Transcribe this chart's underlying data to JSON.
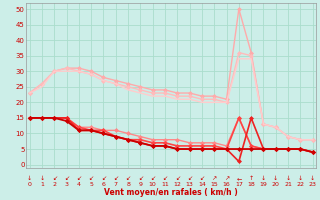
{
  "xlabel": "Vent moyen/en rafales ( km/h )",
  "bg_color": "#cceee8",
  "grid_color": "#aaddcc",
  "x_ticks": [
    0,
    1,
    2,
    3,
    4,
    5,
    6,
    7,
    8,
    9,
    10,
    11,
    12,
    13,
    14,
    15,
    16,
    17,
    18,
    19,
    20,
    21,
    22,
    23
  ],
  "y_ticks": [
    0,
    5,
    10,
    15,
    20,
    25,
    30,
    35,
    40,
    45,
    50
  ],
  "ylim": [
    -1,
    52
  ],
  "xlim": [
    -0.3,
    23.3
  ],
  "lines": [
    {
      "color": "#ffaaaa",
      "lw": 1.0,
      "marker": "D",
      "ms": 2.0,
      "mfc": "#ffaaaa",
      "x": [
        0,
        1,
        2,
        3,
        4,
        5,
        6,
        7,
        8,
        9,
        10,
        11,
        12,
        13,
        14,
        15,
        16,
        17,
        18,
        19,
        20,
        21,
        22,
        23
      ],
      "y": [
        23,
        26,
        30,
        31,
        31,
        30,
        28,
        27,
        26,
        25,
        24,
        24,
        23,
        23,
        22,
        22,
        21,
        50,
        36,
        13,
        12,
        9,
        8,
        8
      ]
    },
    {
      "color": "#ffbbbb",
      "lw": 1.0,
      "marker": "D",
      "ms": 2.0,
      "mfc": "#ffbbbb",
      "x": [
        0,
        1,
        2,
        3,
        4,
        5,
        6,
        7,
        8,
        9,
        10,
        11,
        12,
        13,
        14,
        15,
        16,
        17,
        18,
        19,
        20,
        21,
        22,
        23
      ],
      "y": [
        23,
        26,
        30,
        31,
        30,
        29,
        27,
        26,
        25,
        24,
        23,
        23,
        22,
        22,
        21,
        21,
        20,
        36,
        35,
        13,
        12,
        9,
        8,
        8
      ]
    },
    {
      "color": "#ffcccc",
      "lw": 1.0,
      "marker": null,
      "ms": 0,
      "mfc": "#ffcccc",
      "x": [
        0,
        1,
        2,
        3,
        4,
        5,
        6,
        7,
        8,
        9,
        10,
        11,
        12,
        13,
        14,
        15,
        16,
        17,
        18,
        19,
        20,
        21,
        22,
        23
      ],
      "y": [
        23,
        25,
        30,
        30,
        30,
        29,
        27,
        26,
        24,
        23,
        22,
        22,
        21,
        21,
        20,
        20,
        20,
        34,
        34,
        13,
        12,
        9,
        8,
        8
      ]
    },
    {
      "color": "#ff8888",
      "lw": 1.0,
      "marker": "D",
      "ms": 2.0,
      "mfc": "#ff8888",
      "x": [
        0,
        1,
        2,
        3,
        4,
        5,
        6,
        7,
        8,
        9,
        10,
        11,
        12,
        13,
        14,
        15,
        16,
        17,
        18,
        19,
        20,
        21,
        22,
        23
      ],
      "y": [
        15,
        15,
        15,
        15,
        12,
        12,
        11,
        11,
        10,
        9,
        8,
        8,
        8,
        7,
        7,
        7,
        6,
        15,
        6,
        5,
        5,
        5,
        5,
        4
      ]
    },
    {
      "color": "#ff4444",
      "lw": 1.2,
      "marker": "D",
      "ms": 2.0,
      "mfc": "#ff4444",
      "x": [
        0,
        1,
        2,
        3,
        4,
        5,
        6,
        7,
        8,
        9,
        10,
        11,
        12,
        13,
        14,
        15,
        16,
        17,
        18,
        19,
        20,
        21,
        22,
        23
      ],
      "y": [
        15,
        15,
        15,
        15,
        12,
        11,
        11,
        9,
        8,
        8,
        7,
        7,
        6,
        6,
        6,
        6,
        5,
        15,
        6,
        5,
        5,
        5,
        5,
        4
      ]
    },
    {
      "color": "#ee2222",
      "lw": 1.2,
      "marker": "D",
      "ms": 2.0,
      "mfc": "#ee2222",
      "x": [
        0,
        1,
        2,
        3,
        4,
        5,
        6,
        7,
        8,
        9,
        10,
        11,
        12,
        13,
        14,
        15,
        16,
        17,
        18,
        19,
        20,
        21,
        22,
        23
      ],
      "y": [
        15,
        15,
        15,
        15,
        11,
        11,
        10,
        9,
        8,
        7,
        6,
        6,
        5,
        5,
        5,
        5,
        5,
        1,
        15,
        5,
        5,
        5,
        5,
        4
      ]
    },
    {
      "color": "#cc0000",
      "lw": 1.3,
      "marker": "D",
      "ms": 2.0,
      "mfc": "#cc0000",
      "x": [
        0,
        1,
        2,
        3,
        4,
        5,
        6,
        7,
        8,
        9,
        10,
        11,
        12,
        13,
        14,
        15,
        16,
        17,
        18,
        19,
        20,
        21,
        22,
        23
      ],
      "y": [
        15,
        15,
        15,
        14,
        11,
        11,
        10,
        9,
        8,
        7,
        6,
        6,
        5,
        5,
        5,
        5,
        5,
        5,
        5,
        5,
        5,
        5,
        5,
        4
      ]
    }
  ],
  "arrow_labels": [
    "↓",
    "↓",
    "↙",
    "↙",
    "↙",
    "↙",
    "↙",
    "↙",
    "↙",
    "↙",
    "↙",
    "↙",
    "↙",
    "↙",
    "↙",
    "↗",
    "↗",
    "←",
    "↑",
    "↓",
    "↓",
    "↓",
    "↓",
    "↓"
  ],
  "tick_label_color": "#cc0000",
  "axis_label_color": "#cc0000"
}
